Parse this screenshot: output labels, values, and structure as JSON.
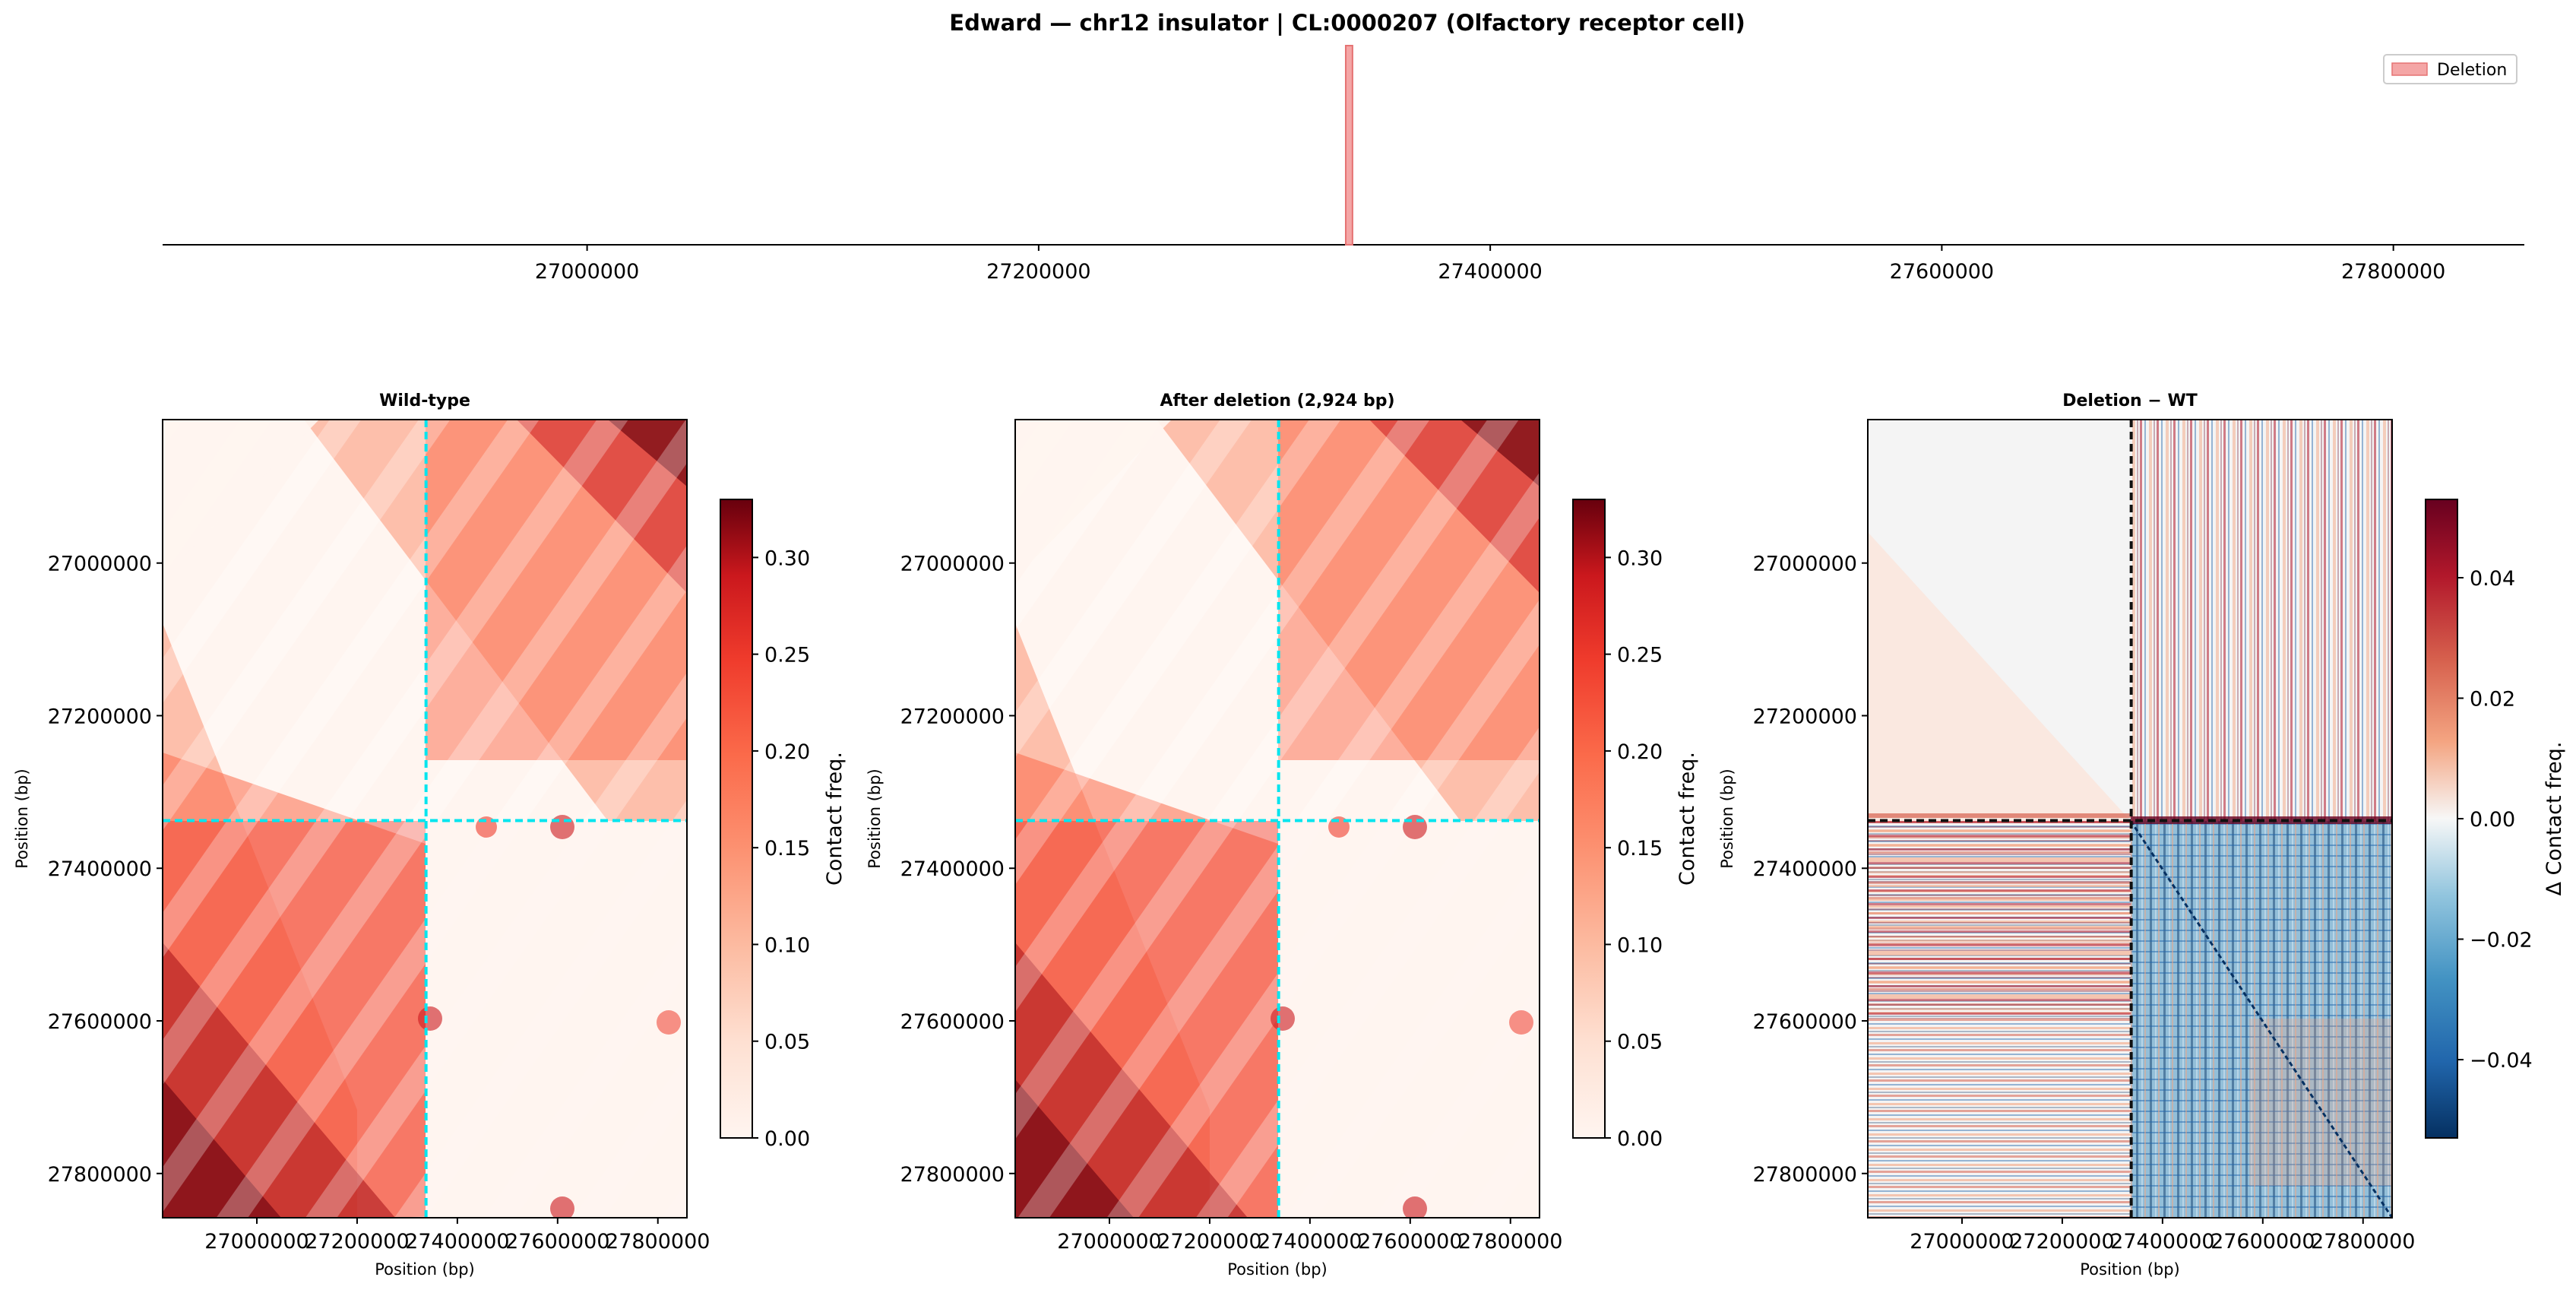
{
  "figure": {
    "title": "Edward — chr12 insulator  |  CL:0000207 (Olfactory receptor cell)"
  },
  "chart_data": [
    {
      "type": "track",
      "title": "",
      "xlim": [
        26812000,
        27858000
      ],
      "xticks": [
        "27000000",
        "27200000",
        "27400000",
        "27600000",
        "27800000"
      ],
      "xtick_values": [
        27000000,
        27200000,
        27400000,
        27600000,
        27800000
      ],
      "deletion": {
        "start": 27336000,
        "end": 27339000,
        "length_bp": 2924
      },
      "legend": {
        "label": "Deletion",
        "placement": "top-right",
        "color": "#f4a6a6"
      }
    },
    {
      "type": "heatmap",
      "title": "Wild-type",
      "xlabel": "Position (bp)",
      "ylabel": "Position (bp)",
      "range": [
        26812000,
        27858000
      ],
      "xticks": [
        "27000000",
        "27200000",
        "27400000",
        "27600000",
        "27800000"
      ],
      "yticks": [
        "27000000",
        "27200000",
        "27400000",
        "27600000",
        "27800000"
      ],
      "tick_values": [
        27000000,
        27200000,
        27400000,
        27600000,
        27800000
      ],
      "marker_position": 27337500,
      "marker_color": "#00e5ee",
      "colorbar": {
        "label": "Contact freq.",
        "colormap": "Reds",
        "vmin": 0.0,
        "vmax": 0.33,
        "ticks": [
          "0.00",
          "0.05",
          "0.10",
          "0.15",
          "0.20",
          "0.25",
          "0.30"
        ],
        "tick_values": [
          0.0,
          0.05,
          0.1,
          0.15,
          0.2,
          0.25,
          0.3
        ]
      }
    },
    {
      "type": "heatmap",
      "title": "After deletion (2,924 bp)",
      "xlabel": "Position (bp)",
      "ylabel": "Position (bp)",
      "range": [
        26812000,
        27858000
      ],
      "xticks": [
        "27000000",
        "27200000",
        "27400000",
        "27600000",
        "27800000"
      ],
      "yticks": [
        "27000000",
        "27200000",
        "27400000",
        "27600000",
        "27800000"
      ],
      "tick_values": [
        27000000,
        27200000,
        27400000,
        27600000,
        27800000
      ],
      "marker_position": 27337500,
      "marker_color": "#00e5ee",
      "colorbar": {
        "label": "Contact freq.",
        "colormap": "Reds",
        "vmin": 0.0,
        "vmax": 0.33,
        "ticks": [
          "0.00",
          "0.05",
          "0.10",
          "0.15",
          "0.20",
          "0.25",
          "0.30"
        ],
        "tick_values": [
          0.0,
          0.05,
          0.1,
          0.15,
          0.2,
          0.25,
          0.3
        ]
      }
    },
    {
      "type": "heatmap",
      "title": "Deletion − WT",
      "xlabel": "Position (bp)",
      "ylabel": "Position (bp)",
      "range": [
        26812000,
        27858000
      ],
      "xticks": [
        "27000000",
        "27200000",
        "27400000",
        "27600000",
        "27800000"
      ],
      "yticks": [
        "27000000",
        "27200000",
        "27400000",
        "27600000",
        "27800000"
      ],
      "tick_values": [
        27000000,
        27200000,
        27400000,
        27600000,
        27800000
      ],
      "marker_position": 27337500,
      "marker_color": "#111111",
      "colorbar": {
        "label": "Δ Contact freq.",
        "colormap": "RdBu_r",
        "vmin": -0.053,
        "vmax": 0.053,
        "ticks": [
          "−0.04",
          "−0.02",
          "0.00",
          "0.02",
          "0.04"
        ],
        "tick_values": [
          -0.04,
          -0.02,
          0.0,
          0.02,
          0.04
        ]
      }
    }
  ]
}
